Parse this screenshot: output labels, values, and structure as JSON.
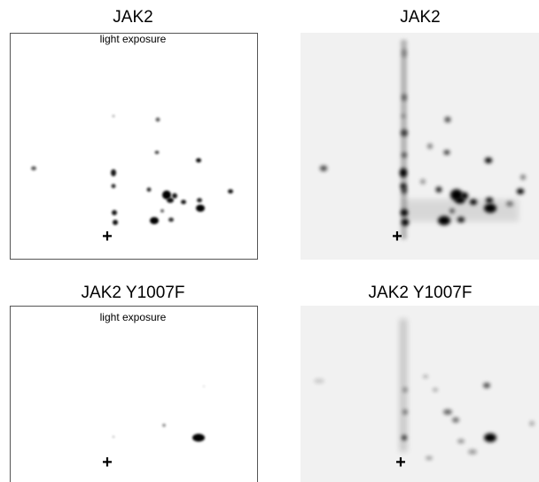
{
  "panels": [
    {
      "title": "JAK2",
      "note": "light exposure",
      "origin": "+"
    },
    {
      "title": "JAK2",
      "origin": "+"
    },
    {
      "title": "JAK2 Y1007F",
      "note": "light exposure",
      "origin": "+"
    },
    {
      "title": "JAK2 Y1007F",
      "origin": "+"
    }
  ]
}
